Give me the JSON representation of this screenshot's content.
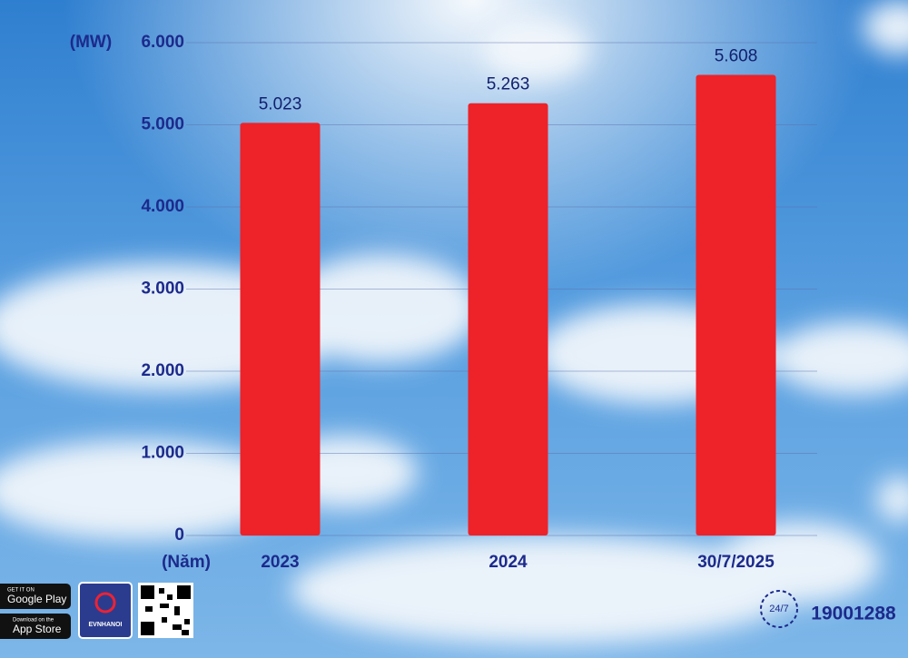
{
  "chart_data": {
    "type": "bar",
    "y_axis_label": "(MW)",
    "x_axis_label": "(Năm)",
    "categories": [
      "2023",
      "2024",
      "30/7/2025"
    ],
    "values": [
      5023,
      5263,
      5608
    ],
    "value_labels": [
      "5.023",
      "5.263",
      "5.608"
    ],
    "color": "#ee2229",
    "ylim": [
      0,
      6000
    ],
    "yticks": [
      0,
      {
        "value": 1000,
        "label": "1.000"
      },
      {
        "value": 2000,
        "label": "2.000"
      },
      {
        "value": 3000,
        "label": "3.000"
      },
      {
        "value": 4000,
        "label": "4.000"
      },
      {
        "value": 5000,
        "label": "5.000"
      },
      {
        "value": 6000,
        "label": "6.000"
      }
    ],
    "grid": true
  },
  "footer": {
    "google_small": "GET IT ON",
    "google": "Google Play",
    "apple_small": "Download on the",
    "apple": "App Store",
    "brand": "EVNHANOI",
    "hours": "24/7",
    "hotline": "19001288"
  }
}
